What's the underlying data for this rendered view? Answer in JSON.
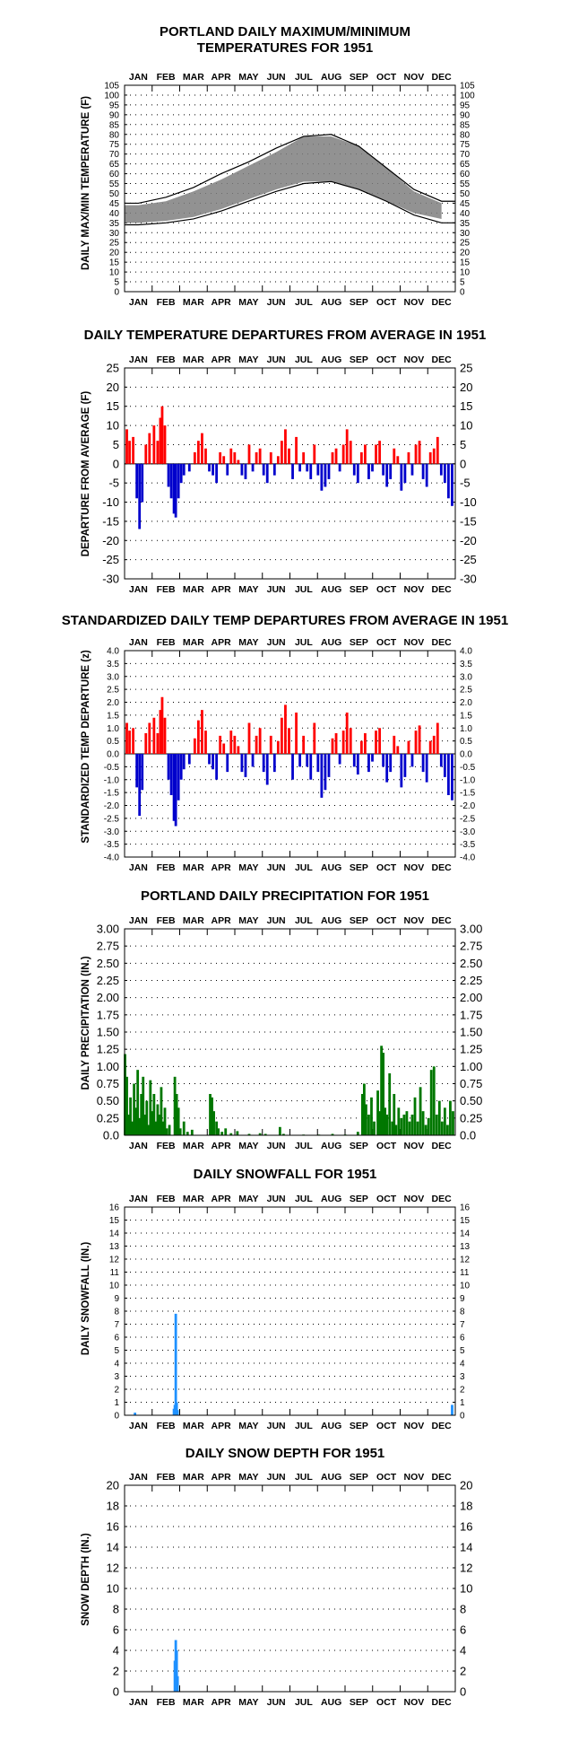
{
  "months": [
    "JAN",
    "FEB",
    "MAR",
    "APR",
    "MAY",
    "JUN",
    "JUL",
    "AUG",
    "SEP",
    "OCT",
    "NOV",
    "DEC"
  ],
  "colors": {
    "temperature": "#7f7f7f",
    "normal_line": "#000000",
    "above": "#ff0000",
    "below": "#0000cc",
    "precipitation": "#007700",
    "snow": "#1e90ff"
  },
  "panels": [
    {
      "id": "maxmin",
      "title_lines": [
        "PORTLAND DAILY MAXIMUM/MINIMUM",
        "TEMPERATURES FOR 1951"
      ],
      "ylabel": "DAILY MAX/MIN TEMPERATURE (F)",
      "ylim": [
        0,
        105
      ],
      "yticks": [
        "0",
        "5",
        "10",
        "15",
        "20",
        "25",
        "30",
        "35",
        "40",
        "45",
        "50",
        "55",
        "60",
        "65",
        "70",
        "75",
        "80",
        "85",
        "90",
        "95",
        "100",
        "105"
      ]
    },
    {
      "id": "departure",
      "title_lines": [
        "DAILY TEMPERATURE DEPARTURES FROM AVERAGE IN 1951"
      ],
      "ylabel": "DEPARTURE FROM AVERAGE (F)",
      "ylim": [
        -30,
        25
      ],
      "yticks": [
        "-30",
        "-25",
        "-20",
        "-15",
        "-10",
        "-5",
        "0",
        "5",
        "10",
        "15",
        "20",
        "25"
      ]
    },
    {
      "id": "standardized",
      "title_lines": [
        "STANDARDIZED DAILY TEMP DEPARTURES FROM AVERAGE IN 1951"
      ],
      "ylabel": "STANDARDIZED TEMP DEPARTURE (z)",
      "ylim": [
        -4,
        4
      ],
      "yticks": [
        "-4.0",
        "-3.5",
        "-3.0",
        "-2.5",
        "-2.0",
        "-1.5",
        "-1.0",
        "-0.5",
        "0.0",
        "0.5",
        "1.0",
        "1.5",
        "2.0",
        "2.5",
        "3.0",
        "3.5",
        "4.0"
      ]
    },
    {
      "id": "precip",
      "title_lines": [
        "PORTLAND DAILY PRECIPITATION FOR 1951"
      ],
      "ylabel": "DAILY PRECIPITATION (IN.)",
      "ylim": [
        0,
        3
      ],
      "yticks": [
        "0.0",
        "0.25",
        "0.50",
        "0.75",
        "1.00",
        "1.25",
        "1.50",
        "1.75",
        "2.00",
        "2.25",
        "2.50",
        "2.75",
        "3.00"
      ]
    },
    {
      "id": "snowfall",
      "title_lines": [
        "DAILY SNOWFALL FOR 1951"
      ],
      "ylabel": "DAILY SNOWFALL (IN.)",
      "ylim": [
        0,
        16
      ],
      "yticks": [
        "0",
        "1",
        "2",
        "3",
        "4",
        "5",
        "6",
        "7",
        "8",
        "9",
        "10",
        "11",
        "12",
        "13",
        "14",
        "15",
        "16"
      ]
    },
    {
      "id": "snowdepth",
      "title_lines": [
        "DAILY SNOW DEPTH FOR 1951"
      ],
      "ylabel": "SNOW DEPTH (IN.)",
      "ylim": [
        0,
        20
      ],
      "yticks": [
        "0",
        "2",
        "4",
        "6",
        "8",
        "10",
        "12",
        "14",
        "16",
        "18",
        "20"
      ]
    }
  ],
  "chart_data": [
    {
      "type": "line",
      "title": "PORTLAND DAILY MAXIMUM/MINIMUM TEMPERATURES FOR 1951",
      "ylabel": "DAILY MAX/MIN TEMPERATURE (F)",
      "ylim": [
        0,
        105
      ],
      "x_unit": "month",
      "x": [
        0.5,
        1.5,
        2.5,
        3.5,
        4.5,
        5.5,
        6.5,
        7.5,
        8.5,
        9.5,
        10.5,
        11.5
      ],
      "series": [
        {
          "values": [
            44,
            46,
            51,
            57,
            64,
            71,
            79,
            79,
            74,
            63,
            51,
            45
          ],
          "style": "band-top"
        },
        {
          "values": [
            35,
            36,
            38,
            42,
            47,
            52,
            56,
            56,
            52,
            46,
            40,
            37
          ],
          "style": "band-bottom"
        },
        {
          "values": [
            45,
            48,
            53,
            60,
            66,
            73,
            79,
            80,
            74,
            63,
            52,
            46
          ],
          "style": "line"
        },
        {
          "values": [
            34,
            35,
            37,
            41,
            46,
            51,
            55,
            56,
            52,
            46,
            39,
            35
          ],
          "style": "line"
        }
      ],
      "grid": true
    },
    {
      "type": "bar",
      "title": "DAILY TEMPERATURE DEPARTURES FROM AVERAGE IN 1951",
      "ylabel": "DEPARTURE FROM AVERAGE (F)",
      "ylim": [
        -30,
        25
      ],
      "x_unit": "day-of-year",
      "events": [
        [
          3,
          9
        ],
        [
          6,
          6
        ],
        [
          10,
          7
        ],
        [
          14,
          -9
        ],
        [
          17,
          -17
        ],
        [
          20,
          -10
        ],
        [
          24,
          5
        ],
        [
          28,
          8
        ],
        [
          33,
          10
        ],
        [
          37,
          6
        ],
        [
          40,
          12
        ],
        [
          42,
          15
        ],
        [
          45,
          10
        ],
        [
          49,
          -6
        ],
        [
          52,
          -9
        ],
        [
          55,
          -13
        ],
        [
          57,
          -14
        ],
        [
          60,
          -9
        ],
        [
          63,
          -5
        ],
        [
          66,
          -3
        ],
        [
          72,
          -2
        ],
        [
          78,
          3
        ],
        [
          82,
          6
        ],
        [
          86,
          8
        ],
        [
          90,
          4
        ],
        [
          94,
          -2
        ],
        [
          98,
          -3
        ],
        [
          102,
          -5
        ],
        [
          106,
          3
        ],
        [
          110,
          2
        ],
        [
          114,
          -3
        ],
        [
          118,
          4
        ],
        [
          122,
          3
        ],
        [
          126,
          1
        ],
        [
          130,
          -3
        ],
        [
          134,
          -4
        ],
        [
          138,
          5
        ],
        [
          142,
          -2
        ],
        [
          146,
          3
        ],
        [
          150,
          4
        ],
        [
          154,
          -3
        ],
        [
          158,
          -5
        ],
        [
          162,
          3
        ],
        [
          166,
          -3
        ],
        [
          170,
          2
        ],
        [
          174,
          6
        ],
        [
          178,
          9
        ],
        [
          182,
          4
        ],
        [
          186,
          -4
        ],
        [
          190,
          7
        ],
        [
          194,
          -2
        ],
        [
          198,
          3
        ],
        [
          202,
          -2
        ],
        [
          206,
          -4
        ],
        [
          210,
          5
        ],
        [
          214,
          -3
        ],
        [
          218,
          -7
        ],
        [
          222,
          -6
        ],
        [
          226,
          -4
        ],
        [
          230,
          3
        ],
        [
          234,
          4
        ],
        [
          238,
          -2
        ],
        [
          242,
          5
        ],
        [
          246,
          9
        ],
        [
          250,
          6
        ],
        [
          254,
          -3
        ],
        [
          258,
          -5
        ],
        [
          262,
          3
        ],
        [
          266,
          5
        ],
        [
          270,
          -4
        ],
        [
          274,
          -2
        ],
        [
          278,
          5
        ],
        [
          282,
          6
        ],
        [
          286,
          -3
        ],
        [
          290,
          -6
        ],
        [
          294,
          -4
        ],
        [
          298,
          4
        ],
        [
          302,
          2
        ],
        [
          306,
          -7
        ],
        [
          310,
          -5
        ],
        [
          314,
          3
        ],
        [
          318,
          -3
        ],
        [
          322,
          5
        ],
        [
          326,
          6
        ],
        [
          330,
          -4
        ],
        [
          334,
          -6
        ],
        [
          338,
          3
        ],
        [
          342,
          4
        ],
        [
          346,
          7
        ],
        [
          350,
          -3
        ],
        [
          354,
          -5
        ],
        [
          358,
          -9
        ],
        [
          362,
          -11
        ]
      ]
    },
    {
      "type": "bar",
      "title": "STANDARDIZED DAILY TEMP DEPARTURES FROM AVERAGE IN 1951",
      "ylabel": "STANDARDIZED TEMP DEPARTURE (z)",
      "ylim": [
        -4,
        4
      ],
      "x_unit": "day-of-year",
      "events": [
        [
          3,
          1.2
        ],
        [
          6,
          0.9
        ],
        [
          10,
          1.0
        ],
        [
          14,
          -1.3
        ],
        [
          17,
          -2.4
        ],
        [
          20,
          -1.4
        ],
        [
          24,
          0.8
        ],
        [
          28,
          1.2
        ],
        [
          33,
          1.4
        ],
        [
          37,
          0.8
        ],
        [
          40,
          1.7
        ],
        [
          42,
          2.2
        ],
        [
          45,
          1.4
        ],
        [
          49,
          -1.0
        ],
        [
          52,
          -1.6
        ],
        [
          55,
          -2.6
        ],
        [
          57,
          -2.8
        ],
        [
          60,
          -1.8
        ],
        [
          63,
          -1.0
        ],
        [
          66,
          -0.6
        ],
        [
          72,
          -0.4
        ],
        [
          78,
          0.6
        ],
        [
          82,
          1.3
        ],
        [
          86,
          1.7
        ],
        [
          90,
          0.9
        ],
        [
          94,
          -0.4
        ],
        [
          98,
          -0.6
        ],
        [
          102,
          -1.0
        ],
        [
          106,
          0.7
        ],
        [
          110,
          0.4
        ],
        [
          114,
          -0.7
        ],
        [
          118,
          0.9
        ],
        [
          122,
          0.7
        ],
        [
          126,
          0.3
        ],
        [
          130,
          -0.7
        ],
        [
          134,
          -0.9
        ],
        [
          138,
          1.2
        ],
        [
          142,
          -0.5
        ],
        [
          146,
          0.7
        ],
        [
          150,
          1.0
        ],
        [
          154,
          -0.7
        ],
        [
          158,
          -1.2
        ],
        [
          162,
          0.7
        ],
        [
          166,
          -0.7
        ],
        [
          170,
          0.5
        ],
        [
          174,
          1.4
        ],
        [
          178,
          1.9
        ],
        [
          182,
          1.0
        ],
        [
          186,
          -1.0
        ],
        [
          190,
          1.6
        ],
        [
          194,
          -0.5
        ],
        [
          198,
          0.7
        ],
        [
          202,
          -0.5
        ],
        [
          206,
          -1.0
        ],
        [
          210,
          1.2
        ],
        [
          214,
          -0.7
        ],
        [
          218,
          -1.7
        ],
        [
          222,
          -1.4
        ],
        [
          226,
          -0.9
        ],
        [
          230,
          0.6
        ],
        [
          234,
          0.8
        ],
        [
          238,
          -0.4
        ],
        [
          242,
          0.9
        ],
        [
          246,
          1.6
        ],
        [
          250,
          1.0
        ],
        [
          254,
          -0.5
        ],
        [
          258,
          -0.8
        ],
        [
          262,
          0.5
        ],
        [
          266,
          0.8
        ],
        [
          270,
          -0.7
        ],
        [
          274,
          -0.3
        ],
        [
          278,
          0.9
        ],
        [
          282,
          1.0
        ],
        [
          286,
          -0.5
        ],
        [
          290,
          -1.1
        ],
        [
          294,
          -0.7
        ],
        [
          298,
          0.7
        ],
        [
          302,
          0.3
        ],
        [
          306,
          -1.3
        ],
        [
          310,
          -0.9
        ],
        [
          314,
          0.5
        ],
        [
          318,
          -0.5
        ],
        [
          322,
          0.9
        ],
        [
          326,
          1.1
        ],
        [
          330,
          -0.7
        ],
        [
          334,
          -1.1
        ],
        [
          338,
          0.5
        ],
        [
          342,
          0.7
        ],
        [
          346,
          1.2
        ],
        [
          350,
          -0.5
        ],
        [
          354,
          -0.9
        ],
        [
          358,
          -1.6
        ],
        [
          362,
          -1.8
        ]
      ]
    },
    {
      "type": "bar",
      "title": "PORTLAND DAILY PRECIPITATION FOR 1951",
      "ylabel": "DAILY PRECIPITATION (IN.)",
      "ylim": [
        0,
        3
      ],
      "x_unit": "day-of-year",
      "events": [
        [
          1,
          1.18
        ],
        [
          3,
          0.85
        ],
        [
          5,
          0.3
        ],
        [
          7,
          0.55
        ],
        [
          9,
          0.2
        ],
        [
          11,
          0.75
        ],
        [
          13,
          0.4
        ],
        [
          15,
          0.95
        ],
        [
          17,
          0.25
        ],
        [
          19,
          0.6
        ],
        [
          21,
          0.85
        ],
        [
          23,
          0.3
        ],
        [
          25,
          0.5
        ],
        [
          27,
          0.15
        ],
        [
          29,
          0.8
        ],
        [
          31,
          0.35
        ],
        [
          33,
          0.6
        ],
        [
          35,
          0.2
        ],
        [
          37,
          0.45
        ],
        [
          39,
          0.3
        ],
        [
          41,
          0.7
        ],
        [
          43,
          0.2
        ],
        [
          45,
          0.4
        ],
        [
          47,
          0.1
        ],
        [
          50,
          0.15
        ],
        [
          56,
          0.85
        ],
        [
          58,
          0.6
        ],
        [
          60,
          0.4
        ],
        [
          62,
          0.1
        ],
        [
          66,
          0.2
        ],
        [
          70,
          0.05
        ],
        [
          75,
          0.08
        ],
        [
          95,
          0.6
        ],
        [
          97,
          0.55
        ],
        [
          99,
          0.35
        ],
        [
          102,
          0.2
        ],
        [
          104,
          0.1
        ],
        [
          108,
          0.05
        ],
        [
          112,
          0.1
        ],
        [
          118,
          0.03
        ],
        [
          125,
          0.06
        ],
        [
          138,
          0.02
        ],
        [
          150,
          0.03
        ],
        [
          156,
          0.02
        ],
        [
          172,
          0.12
        ],
        [
          176,
          0.02
        ],
        [
          198,
          0.01
        ],
        [
          215,
          0.01
        ],
        [
          230,
          0.02
        ],
        [
          244,
          0.01
        ],
        [
          258,
          0.05
        ],
        [
          263,
          0.6
        ],
        [
          265,
          0.75
        ],
        [
          267,
          0.45
        ],
        [
          270,
          0.3
        ],
        [
          273,
          0.55
        ],
        [
          276,
          0.2
        ],
        [
          280,
          0.65
        ],
        [
          282,
          0.35
        ],
        [
          284,
          1.3
        ],
        [
          286,
          1.2
        ],
        [
          288,
          0.4
        ],
        [
          290,
          0.3
        ],
        [
          293,
          0.9
        ],
        [
          296,
          0.2
        ],
        [
          298,
          0.6
        ],
        [
          300,
          0.15
        ],
        [
          303,
          0.4
        ],
        [
          306,
          0.25
        ],
        [
          309,
          0.3
        ],
        [
          312,
          0.35
        ],
        [
          315,
          0.2
        ],
        [
          318,
          0.3
        ],
        [
          321,
          0.55
        ],
        [
          324,
          0.2
        ],
        [
          327,
          0.7
        ],
        [
          330,
          0.35
        ],
        [
          333,
          0.15
        ],
        [
          336,
          0.25
        ],
        [
          339,
          0.95
        ],
        [
          342,
          1.0
        ],
        [
          345,
          0.3
        ],
        [
          348,
          0.5
        ],
        [
          351,
          0.2
        ],
        [
          354,
          0.4
        ],
        [
          357,
          0.15
        ],
        [
          360,
          0.5
        ],
        [
          363,
          0.35
        ]
      ]
    },
    {
      "type": "bar",
      "title": "DAILY SNOWFALL FOR 1951",
      "ylabel": "DAILY SNOWFALL (IN.)",
      "ylim": [
        0,
        16
      ],
      "x_unit": "day-of-year",
      "events": [
        [
          12,
          0.2
        ],
        [
          55,
          0.5
        ],
        [
          56,
          0.8
        ],
        [
          57,
          7.8
        ],
        [
          58,
          1.0
        ],
        [
          59,
          0.4
        ],
        [
          362,
          0.8
        ]
      ]
    },
    {
      "type": "bar",
      "title": "DAILY SNOW DEPTH FOR 1951",
      "ylabel": "SNOW DEPTH (IN.)",
      "ylim": [
        0,
        20
      ],
      "x_unit": "day-of-year",
      "events": [
        [
          56,
          3.0
        ],
        [
          57,
          5.0
        ],
        [
          58,
          4.0
        ],
        [
          59,
          1.5
        ]
      ]
    }
  ]
}
